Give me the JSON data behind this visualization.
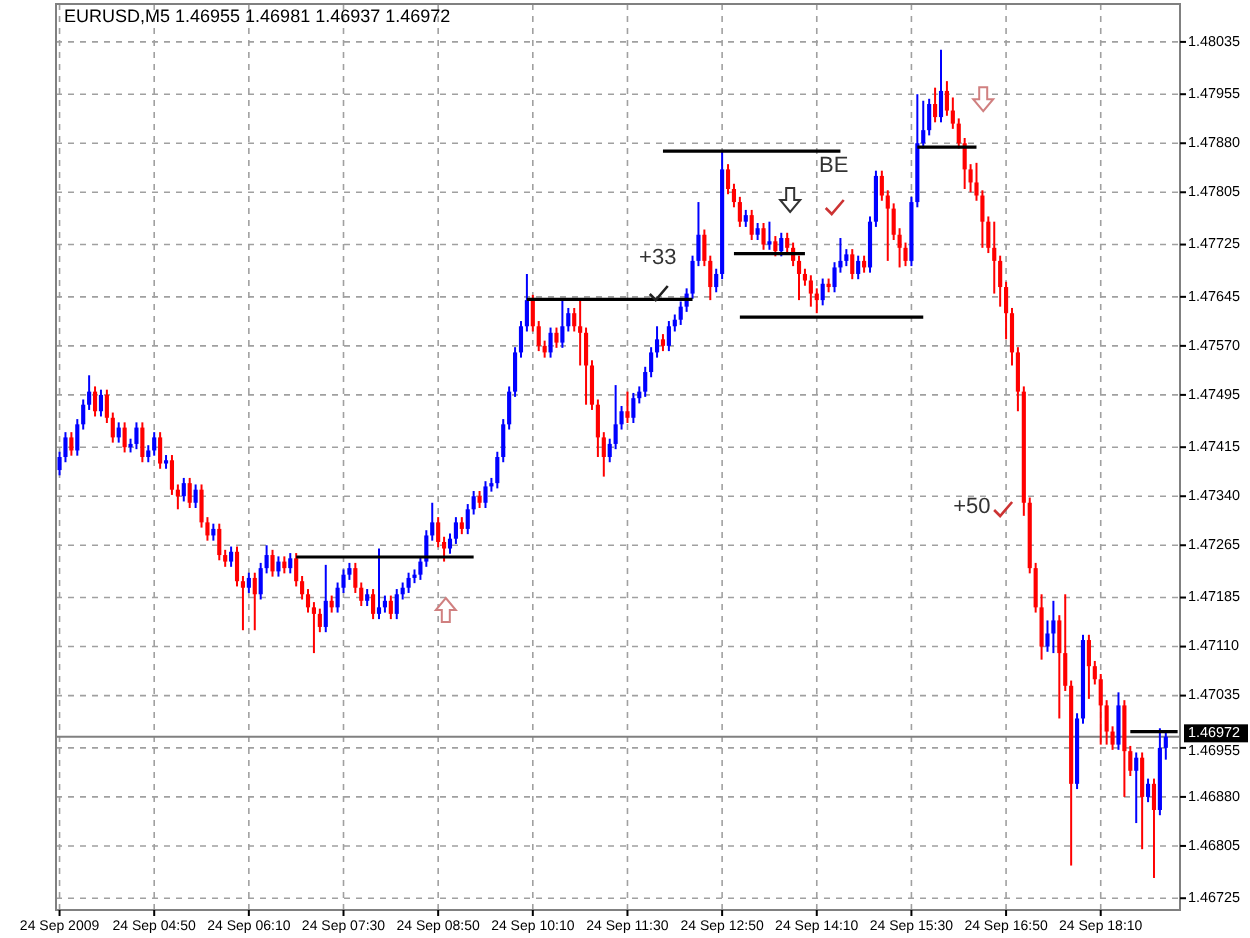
{
  "chart_data": {
    "type": "candlestick",
    "title": "EURUSD,M5  1.46955 1.46981 1.46937 1.46972",
    "x": [
      "2009-09-24T03:30",
      "2009-09-24T03:35",
      "2009-09-24T03:40",
      "2009-09-24T03:45",
      "2009-09-24T03:50",
      "2009-09-24T03:55",
      "2009-09-24T04:00",
      "2009-09-24T04:05",
      "2009-09-24T04:10",
      "2009-09-24T04:15",
      "2009-09-24T04:20",
      "2009-09-24T04:25",
      "2009-09-24T04:30",
      "2009-09-24T04:35",
      "2009-09-24T04:40",
      "2009-09-24T04:45",
      "2009-09-24T04:50",
      "2009-09-24T04:55",
      "2009-09-24T05:00",
      "2009-09-24T05:05",
      "2009-09-24T05:10",
      "2009-09-24T05:15",
      "2009-09-24T05:20",
      "2009-09-24T05:25",
      "2009-09-24T05:30",
      "2009-09-24T05:35",
      "2009-09-24T05:40",
      "2009-09-24T05:45",
      "2009-09-24T05:50",
      "2009-09-24T05:55",
      "2009-09-24T06:00",
      "2009-09-24T06:05",
      "2009-09-24T06:10",
      "2009-09-24T06:15",
      "2009-09-24T06:20",
      "2009-09-24T06:25",
      "2009-09-24T06:30",
      "2009-09-24T06:35",
      "2009-09-24T06:40",
      "2009-09-24T06:45",
      "2009-09-24T06:50",
      "2009-09-24T06:55",
      "2009-09-24T07:00",
      "2009-09-24T07:05",
      "2009-09-24T07:10",
      "2009-09-24T07:15",
      "2009-09-24T07:20",
      "2009-09-24T07:25",
      "2009-09-24T07:30",
      "2009-09-24T07:35",
      "2009-09-24T07:40",
      "2009-09-24T07:45",
      "2009-09-24T07:50",
      "2009-09-24T07:55",
      "2009-09-24T08:00",
      "2009-09-24T08:05",
      "2009-09-24T08:10",
      "2009-09-24T08:15",
      "2009-09-24T08:20",
      "2009-09-24T08:25",
      "2009-09-24T08:30",
      "2009-09-24T08:35",
      "2009-09-24T08:40",
      "2009-09-24T08:45",
      "2009-09-24T08:50",
      "2009-09-24T08:55",
      "2009-09-24T09:00",
      "2009-09-24T09:05",
      "2009-09-24T09:10",
      "2009-09-24T09:15",
      "2009-09-24T09:20",
      "2009-09-24T09:25",
      "2009-09-24T09:30",
      "2009-09-24T09:35",
      "2009-09-24T09:40",
      "2009-09-24T09:45",
      "2009-09-24T09:50",
      "2009-09-24T09:55",
      "2009-09-24T10:00",
      "2009-09-24T10:05",
      "2009-09-24T10:10",
      "2009-09-24T10:15",
      "2009-09-24T10:20",
      "2009-09-24T10:25",
      "2009-09-24T10:30",
      "2009-09-24T10:35",
      "2009-09-24T10:40",
      "2009-09-24T10:45",
      "2009-09-24T10:50",
      "2009-09-24T10:55",
      "2009-09-24T11:00",
      "2009-09-24T11:05",
      "2009-09-24T11:10",
      "2009-09-24T11:15",
      "2009-09-24T11:20",
      "2009-09-24T11:25",
      "2009-09-24T11:30",
      "2009-09-24T11:35",
      "2009-09-24T11:40",
      "2009-09-24T11:45",
      "2009-09-24T11:50",
      "2009-09-24T11:55",
      "2009-09-24T12:00",
      "2009-09-24T12:05",
      "2009-09-24T12:10",
      "2009-09-24T12:15",
      "2009-09-24T12:20",
      "2009-09-24T12:25",
      "2009-09-24T12:30",
      "2009-09-24T12:35",
      "2009-09-24T12:40",
      "2009-09-24T12:45",
      "2009-09-24T12:50",
      "2009-09-24T12:55",
      "2009-09-24T13:00",
      "2009-09-24T13:05",
      "2009-09-24T13:10",
      "2009-09-24T13:15",
      "2009-09-24T13:20",
      "2009-09-24T13:25",
      "2009-09-24T13:30",
      "2009-09-24T13:35",
      "2009-09-24T13:40",
      "2009-09-24T13:45",
      "2009-09-24T13:50",
      "2009-09-24T13:55",
      "2009-09-24T14:00",
      "2009-09-24T14:05",
      "2009-09-24T14:10",
      "2009-09-24T14:15",
      "2009-09-24T14:20",
      "2009-09-24T14:25",
      "2009-09-24T14:30",
      "2009-09-24T14:35",
      "2009-09-24T14:40",
      "2009-09-24T14:45",
      "2009-09-24T14:50",
      "2009-09-24T14:55",
      "2009-09-24T15:00",
      "2009-09-24T15:05",
      "2009-09-24T15:10",
      "2009-09-24T15:15",
      "2009-09-24T15:20",
      "2009-09-24T15:25",
      "2009-09-24T15:30",
      "2009-09-24T15:35",
      "2009-09-24T15:40",
      "2009-09-24T15:45",
      "2009-09-24T15:50",
      "2009-09-24T15:55",
      "2009-09-24T16:00",
      "2009-09-24T16:05",
      "2009-09-24T16:10",
      "2009-09-24T16:15",
      "2009-09-24T16:20",
      "2009-09-24T16:25",
      "2009-09-24T16:30",
      "2009-09-24T16:35",
      "2009-09-24T16:40",
      "2009-09-24T16:45",
      "2009-09-24T16:50",
      "2009-09-24T16:55",
      "2009-09-24T17:00",
      "2009-09-24T17:05",
      "2009-09-24T17:10",
      "2009-09-24T17:15",
      "2009-09-24T17:20",
      "2009-09-24T17:25",
      "2009-09-24T17:30",
      "2009-09-24T17:35",
      "2009-09-24T17:40",
      "2009-09-24T17:45",
      "2009-09-24T17:50",
      "2009-09-24T17:55",
      "2009-09-24T18:00",
      "2009-09-24T18:05",
      "2009-09-24T18:10",
      "2009-09-24T18:15",
      "2009-09-24T18:20",
      "2009-09-24T18:25",
      "2009-09-24T18:30",
      "2009-09-24T18:35",
      "2009-09-24T18:40",
      "2009-09-24T18:45",
      "2009-09-24T18:50",
      "2009-09-24T18:55",
      "2009-09-24T19:00",
      "2009-09-24T19:05"
    ],
    "ohlc": [
      [
        1.4738,
        1.47408,
        1.47372,
        1.474
      ],
      [
        1.474,
        1.47438,
        1.47392,
        1.4743
      ],
      [
        1.4743,
        1.47438,
        1.47402,
        1.4741
      ],
      [
        1.4741,
        1.47458,
        1.47402,
        1.4745
      ],
      [
        1.4745,
        1.47488,
        1.47442,
        1.4748
      ],
      [
        1.4748,
        1.47525,
        1.47472,
        1.475
      ],
      [
        1.475,
        1.47508,
        1.47462,
        1.4747
      ],
      [
        1.4747,
        1.47503,
        1.47462,
        1.47495
      ],
      [
        1.47495,
        1.47503,
        1.47452,
        1.4746
      ],
      [
        1.4746,
        1.47468,
        1.47422,
        1.4743
      ],
      [
        1.4743,
        1.47453,
        1.47422,
        1.47445
      ],
      [
        1.47445,
        1.47453,
        1.47407,
        1.47415
      ],
      [
        1.47415,
        1.47428,
        1.47407,
        1.4742
      ],
      [
        1.4742,
        1.47453,
        1.47412,
        1.47445
      ],
      [
        1.47445,
        1.47453,
        1.47392,
        1.474
      ],
      [
        1.474,
        1.47418,
        1.47392,
        1.4741
      ],
      [
        1.4741,
        1.47438,
        1.47402,
        1.4743
      ],
      [
        1.4743,
        1.47438,
        1.47382,
        1.4739
      ],
      [
        1.4739,
        1.47403,
        1.47382,
        1.47395
      ],
      [
        1.47395,
        1.47403,
        1.47342,
        1.4735
      ],
      [
        1.4735,
        1.47358,
        1.4732,
        1.4734
      ],
      [
        1.4734,
        1.47368,
        1.47332,
        1.4736
      ],
      [
        1.4736,
        1.47368,
        1.47322,
        1.4733
      ],
      [
        1.4733,
        1.47358,
        1.47322,
        1.4735
      ],
      [
        1.4735,
        1.47358,
        1.47292,
        1.473
      ],
      [
        1.473,
        1.47308,
        1.47272,
        1.4728
      ],
      [
        1.4728,
        1.47298,
        1.47272,
        1.4729
      ],
      [
        1.4729,
        1.47298,
        1.47242,
        1.4725
      ],
      [
        1.4725,
        1.47258,
        1.47232,
        1.4724
      ],
      [
        1.4724,
        1.47263,
        1.47232,
        1.47255
      ],
      [
        1.47255,
        1.47263,
        1.47202,
        1.4721
      ],
      [
        1.4721,
        1.47218,
        1.47135,
        1.472
      ],
      [
        1.472,
        1.47223,
        1.47192,
        1.47215
      ],
      [
        1.47215,
        1.47223,
        1.47135,
        1.4719
      ],
      [
        1.4719,
        1.47238,
        1.47182,
        1.4723
      ],
      [
        1.4723,
        1.47265,
        1.47222,
        1.4725
      ],
      [
        1.4725,
        1.47258,
        1.47217,
        1.47225
      ],
      [
        1.47225,
        1.47248,
        1.47217,
        1.4724
      ],
      [
        1.4724,
        1.47248,
        1.47222,
        1.4723
      ],
      [
        1.4723,
        1.47253,
        1.47222,
        1.47245
      ],
      [
        1.47245,
        1.47253,
        1.47202,
        1.4721
      ],
      [
        1.4721,
        1.47218,
        1.47182,
        1.4719
      ],
      [
        1.4719,
        1.47198,
        1.47162,
        1.4717
      ],
      [
        1.4717,
        1.47178,
        1.471,
        1.4716
      ],
      [
        1.4716,
        1.47168,
        1.47132,
        1.4714
      ],
      [
        1.4714,
        1.47235,
        1.47132,
        1.4718
      ],
      [
        1.4718,
        1.47188,
        1.47162,
        1.4717
      ],
      [
        1.4717,
        1.47208,
        1.47162,
        1.472
      ],
      [
        1.472,
        1.47228,
        1.47192,
        1.4722
      ],
      [
        1.4722,
        1.47238,
        1.47212,
        1.4723
      ],
      [
        1.4723,
        1.47238,
        1.47192,
        1.472
      ],
      [
        1.472,
        1.47208,
        1.47172,
        1.4718
      ],
      [
        1.4718,
        1.47198,
        1.47172,
        1.4719
      ],
      [
        1.4719,
        1.47198,
        1.47152,
        1.4716
      ],
      [
        1.4716,
        1.4726,
        1.47152,
        1.4717
      ],
      [
        1.4717,
        1.47188,
        1.47162,
        1.4718
      ],
      [
        1.4718,
        1.47188,
        1.47152,
        1.4716
      ],
      [
        1.4716,
        1.47198,
        1.47152,
        1.4719
      ],
      [
        1.4719,
        1.47208,
        1.47182,
        1.472
      ],
      [
        1.472,
        1.47223,
        1.47192,
        1.47215
      ],
      [
        1.47215,
        1.47228,
        1.47207,
        1.4722
      ],
      [
        1.4722,
        1.47248,
        1.47212,
        1.4724
      ],
      [
        1.4724,
        1.47288,
        1.47232,
        1.4728
      ],
      [
        1.4728,
        1.4733,
        1.47272,
        1.473
      ],
      [
        1.473,
        1.47308,
        1.47262,
        1.4727
      ],
      [
        1.4727,
        1.47278,
        1.4724,
        1.4726
      ],
      [
        1.4726,
        1.47283,
        1.47252,
        1.47275
      ],
      [
        1.47275,
        1.47308,
        1.47267,
        1.473
      ],
      [
        1.473,
        1.47308,
        1.47282,
        1.4729
      ],
      [
        1.4729,
        1.47328,
        1.47282,
        1.4732
      ],
      [
        1.4732,
        1.47348,
        1.47312,
        1.4734
      ],
      [
        1.4734,
        1.47348,
        1.47322,
        1.4733
      ],
      [
        1.4733,
        1.47363,
        1.47322,
        1.47355
      ],
      [
        1.47355,
        1.47368,
        1.47347,
        1.4736
      ],
      [
        1.4736,
        1.47408,
        1.47352,
        1.474
      ],
      [
        1.474,
        1.47458,
        1.47392,
        1.4745
      ],
      [
        1.4745,
        1.47508,
        1.47442,
        1.475
      ],
      [
        1.475,
        1.47568,
        1.47492,
        1.4756
      ],
      [
        1.4756,
        1.47608,
        1.47552,
        1.476
      ],
      [
        1.476,
        1.4768,
        1.47592,
        1.4764
      ],
      [
        1.4764,
        1.47648,
        1.47592,
        1.476
      ],
      [
        1.476,
        1.47608,
        1.47562,
        1.4757
      ],
      [
        1.4757,
        1.47578,
        1.47552,
        1.4756
      ],
      [
        1.4756,
        1.47598,
        1.47552,
        1.4759
      ],
      [
        1.4759,
        1.47598,
        1.47567,
        1.47575
      ],
      [
        1.47575,
        1.4764,
        1.47567,
        1.476
      ],
      [
        1.476,
        1.47628,
        1.47592,
        1.4762
      ],
      [
        1.4762,
        1.47628,
        1.47592,
        1.476
      ],
      [
        1.476,
        1.4764,
        1.4754,
        1.4759
      ],
      [
        1.4759,
        1.47598,
        1.4748,
        1.4754
      ],
      [
        1.4754,
        1.47548,
        1.47472,
        1.4748
      ],
      [
        1.4748,
        1.47488,
        1.474,
        1.4743
      ],
      [
        1.4743,
        1.47438,
        1.4737,
        1.474
      ],
      [
        1.474,
        1.47428,
        1.47392,
        1.4742
      ],
      [
        1.4742,
        1.4751,
        1.47412,
        1.4745
      ],
      [
        1.4745,
        1.47478,
        1.47442,
        1.4747
      ],
      [
        1.4747,
        1.475,
        1.47452,
        1.4746
      ],
      [
        1.4746,
        1.47498,
        1.47452,
        1.4749
      ],
      [
        1.4749,
        1.47508,
        1.47482,
        1.475
      ],
      [
        1.475,
        1.47538,
        1.47492,
        1.4753
      ],
      [
        1.4753,
        1.47568,
        1.47522,
        1.4756
      ],
      [
        1.4756,
        1.476,
        1.47552,
        1.4758
      ],
      [
        1.4758,
        1.47588,
        1.47562,
        1.4757
      ],
      [
        1.4757,
        1.47608,
        1.47562,
        1.476
      ],
      [
        1.476,
        1.47618,
        1.47592,
        1.4761
      ],
      [
        1.4761,
        1.47638,
        1.47602,
        1.4763
      ],
      [
        1.4763,
        1.47658,
        1.47622,
        1.4765
      ],
      [
        1.4765,
        1.47708,
        1.47642,
        1.477
      ],
      [
        1.477,
        1.4779,
        1.47692,
        1.4774
      ],
      [
        1.4774,
        1.47748,
        1.47692,
        1.477
      ],
      [
        1.477,
        1.47708,
        1.4764,
        1.4766
      ],
      [
        1.4766,
        1.47688,
        1.47652,
        1.4768
      ],
      [
        1.4768,
        1.47868,
        1.47672,
        1.4784
      ],
      [
        1.4784,
        1.47848,
        1.47802,
        1.4781
      ],
      [
        1.4781,
        1.47818,
        1.47782,
        1.4779
      ],
      [
        1.4779,
        1.47798,
        1.47752,
        1.4776
      ],
      [
        1.4776,
        1.47778,
        1.47752,
        1.4777
      ],
      [
        1.4777,
        1.47778,
        1.47732,
        1.4774
      ],
      [
        1.4774,
        1.47758,
        1.47732,
        1.4775
      ],
      [
        1.4775,
        1.47758,
        1.47717,
        1.47725
      ],
      [
        1.47725,
        1.4776,
        1.47717,
        1.4773
      ],
      [
        1.4773,
        1.47738,
        1.47707,
        1.47715
      ],
      [
        1.47715,
        1.47743,
        1.47707,
        1.47735
      ],
      [
        1.47735,
        1.47743,
        1.47712,
        1.4772
      ],
      [
        1.4772,
        1.47728,
        1.47692,
        1.477
      ],
      [
        1.477,
        1.47708,
        1.4764,
        1.4768
      ],
      [
        1.4768,
        1.47688,
        1.47662,
        1.4767
      ],
      [
        1.4767,
        1.47678,
        1.4763,
        1.4765
      ],
      [
        1.4765,
        1.47658,
        1.4762,
        1.4764
      ],
      [
        1.4764,
        1.47673,
        1.47632,
        1.47665
      ],
      [
        1.47665,
        1.47673,
        1.47652,
        1.4766
      ],
      [
        1.4766,
        1.47698,
        1.47652,
        1.4769
      ],
      [
        1.4769,
        1.47735,
        1.47682,
        1.477
      ],
      [
        1.477,
        1.47718,
        1.47692,
        1.4771
      ],
      [
        1.4771,
        1.47718,
        1.47672,
        1.4768
      ],
      [
        1.4768,
        1.47708,
        1.47672,
        1.477
      ],
      [
        1.477,
        1.47708,
        1.47682,
        1.4769
      ],
      [
        1.4769,
        1.47768,
        1.47682,
        1.4776
      ],
      [
        1.4776,
        1.47838,
        1.47752,
        1.4783
      ],
      [
        1.4783,
        1.47838,
        1.47792,
        1.478
      ],
      [
        1.478,
        1.47808,
        1.477,
        1.4778
      ],
      [
        1.4778,
        1.47788,
        1.47732,
        1.4774
      ],
      [
        1.4774,
        1.4775,
        1.4769,
        1.4772
      ],
      [
        1.4772,
        1.47728,
        1.47692,
        1.477
      ],
      [
        1.477,
        1.47798,
        1.47692,
        1.4779
      ],
      [
        1.4779,
        1.47955,
        1.47782,
        1.4788
      ],
      [
        1.4788,
        1.47945,
        1.47872,
        1.479
      ],
      [
        1.479,
        1.47948,
        1.47892,
        1.4794
      ],
      [
        1.4794,
        1.47965,
        1.47912,
        1.4792
      ],
      [
        1.4792,
        1.48023,
        1.47912,
        1.4796
      ],
      [
        1.4796,
        1.47975,
        1.47922,
        1.4793
      ],
      [
        1.4793,
        1.4795,
        1.47902,
        1.4791
      ],
      [
        1.4791,
        1.47918,
        1.47872,
        1.4788
      ],
      [
        1.4788,
        1.47888,
        1.4781,
        1.4784
      ],
      [
        1.4784,
        1.47848,
        1.47805,
        1.4782
      ],
      [
        1.4782,
        1.4785,
        1.47792,
        1.478
      ],
      [
        1.478,
        1.47808,
        1.4772,
        1.4776
      ],
      [
        1.4776,
        1.47768,
        1.47712,
        1.4772
      ],
      [
        1.4772,
        1.4776,
        1.4765,
        1.477
      ],
      [
        1.477,
        1.47708,
        1.4763,
        1.4766
      ],
      [
        1.4766,
        1.47668,
        1.4758,
        1.4762
      ],
      [
        1.4762,
        1.47628,
        1.4754,
        1.4756
      ],
      [
        1.4756,
        1.47568,
        1.4747,
        1.475
      ],
      [
        1.475,
        1.47508,
        1.4731,
        1.4733
      ],
      [
        1.4733,
        1.47338,
        1.47222,
        1.4723
      ],
      [
        1.4723,
        1.47238,
        1.47162,
        1.4717
      ],
      [
        1.4717,
        1.4719,
        1.4709,
        1.4711
      ],
      [
        1.4711,
        1.4715,
        1.47102,
        1.4713
      ],
      [
        1.4713,
        1.4718,
        1.471,
        1.4715
      ],
      [
        1.4715,
        1.47158,
        1.47,
        1.471
      ],
      [
        1.471,
        1.4719,
        1.47042,
        1.4705
      ],
      [
        1.4705,
        1.47058,
        1.46775,
        1.469
      ],
      [
        1.469,
        1.47008,
        1.46892,
        1.47
      ],
      [
        1.47,
        1.47128,
        1.46992,
        1.4712
      ],
      [
        1.4712,
        1.47128,
        1.4703,
        1.4708
      ],
      [
        1.4708,
        1.47088,
        1.47052,
        1.4706
      ],
      [
        1.4706,
        1.47068,
        1.4696,
        1.4702
      ],
      [
        1.4702,
        1.47028,
        1.4696,
        1.4698
      ],
      [
        1.4698,
        1.46988,
        1.46952,
        1.4696
      ],
      [
        1.4696,
        1.4704,
        1.46952,
        1.4702
      ],
      [
        1.4702,
        1.47028,
        1.4688,
        1.4695
      ],
      [
        1.4695,
        1.46958,
        1.46912,
        1.4692
      ],
      [
        1.4692,
        1.46948,
        1.4684,
        1.4694
      ],
      [
        1.4694,
        1.46948,
        1.468,
        1.4688
      ],
      [
        1.4688,
        1.46908,
        1.46872,
        1.469
      ],
      [
        1.469,
        1.46908,
        1.46756,
        1.4686
      ],
      [
        1.4686,
        1.46985,
        1.46852,
        1.46955
      ],
      [
        1.46955,
        1.46981,
        1.46937,
        1.46972
      ]
    ],
    "colors": [
      "#0000ff",
      "#0000ff",
      "#ff0000",
      "#0000ff",
      "#0000ff",
      "#0000ff",
      "#ff0000",
      "#0000ff",
      "#ff0000",
      "#ff0000",
      "#0000ff",
      "#ff0000",
      "#0000ff",
      "#0000ff",
      "#ff0000",
      "#0000ff",
      "#0000ff",
      "#ff0000",
      "#0000ff",
      "#ff0000",
      "#ff0000",
      "#0000ff",
      "#ff0000",
      "#0000ff",
      "#ff0000",
      "#ff0000",
      "#0000ff",
      "#ff0000",
      "#ff0000",
      "#0000ff",
      "#ff0000",
      "#ff0000",
      "#0000ff",
      "#ff0000",
      "#0000ff",
      "#0000ff",
      "#ff0000",
      "#0000ff",
      "#ff0000",
      "#0000ff",
      "#ff0000",
      "#ff0000",
      "#ff0000",
      "#ff0000",
      "#ff0000",
      "#0000ff",
      "#ff0000",
      "#0000ff",
      "#0000ff",
      "#0000ff",
      "#ff0000",
      "#ff0000",
      "#0000ff",
      "#ff0000",
      "#0000ff",
      "#0000ff",
      "#ff0000",
      "#0000ff",
      "#0000ff",
      "#0000ff",
      "#0000ff",
      "#0000ff",
      "#0000ff",
      "#0000ff",
      "#ff0000",
      "#ff0000",
      "#0000ff",
      "#0000ff",
      "#ff0000",
      "#0000ff",
      "#0000ff",
      "#ff0000",
      "#0000ff",
      "#0000ff",
      "#0000ff",
      "#0000ff",
      "#0000ff",
      "#0000ff",
      "#0000ff",
      "#0000ff",
      "#ff0000",
      "#ff0000",
      "#ff0000",
      "#0000ff",
      "#ff0000",
      "#0000ff",
      "#0000ff",
      "#ff0000",
      "#ff0000",
      "#ff0000",
      "#ff0000",
      "#ff0000",
      "#ff0000",
      "#0000ff",
      "#0000ff",
      "#0000ff",
      "#ff0000",
      "#0000ff",
      "#0000ff",
      "#0000ff",
      "#0000ff",
      "#0000ff",
      "#ff0000",
      "#0000ff",
      "#0000ff",
      "#0000ff",
      "#0000ff",
      "#0000ff",
      "#0000ff",
      "#ff0000",
      "#ff0000",
      "#0000ff",
      "#0000ff",
      "#ff0000",
      "#ff0000",
      "#ff0000",
      "#0000ff",
      "#ff0000",
      "#0000ff",
      "#ff0000",
      "#0000ff",
      "#ff0000",
      "#0000ff",
      "#ff0000",
      "#ff0000",
      "#ff0000",
      "#ff0000",
      "#ff0000",
      "#ff0000",
      "#0000ff",
      "#ff0000",
      "#0000ff",
      "#0000ff",
      "#0000ff",
      "#ff0000",
      "#0000ff",
      "#ff0000",
      "#0000ff",
      "#0000ff",
      "#ff0000",
      "#ff0000",
      "#ff0000",
      "#ff0000",
      "#ff0000",
      "#0000ff",
      "#0000ff",
      "#0000ff",
      "#0000ff",
      "#ff0000",
      "#0000ff",
      "#ff0000",
      "#ff0000",
      "#ff0000",
      "#ff0000",
      "#ff0000",
      "#ff0000",
      "#ff0000",
      "#ff0000",
      "#ff0000",
      "#ff0000",
      "#ff0000",
      "#ff0000",
      "#ff0000",
      "#ff0000",
      "#ff0000",
      "#ff0000",
      "#ff0000",
      "#0000ff",
      "#0000ff",
      "#ff0000",
      "#ff0000",
      "#ff0000",
      "#0000ff",
      "#0000ff",
      "#ff0000",
      "#ff0000",
      "#ff0000",
      "#ff0000",
      "#ff0000",
      "#0000ff",
      "#ff0000",
      "#ff0000",
      "#0000ff",
      "#ff0000",
      "#0000ff",
      "#ff0000",
      "#0000ff",
      "#0000ff"
    ],
    "series": [
      {
        "type": "line",
        "color": "#000000",
        "x": [
          "2009-09-24T06:50",
          "2009-09-24T09:20"
        ],
        "values": [
          1.47247,
          1.47247
        ]
      },
      {
        "type": "line",
        "color": "#000000",
        "x": [
          "2009-09-24T10:05",
          "2009-09-24T12:25"
        ],
        "values": [
          1.47641,
          1.47641
        ]
      },
      {
        "type": "line",
        "color": "#000000",
        "x": [
          "2009-09-24T12:00",
          "2009-09-24T14:30"
        ],
        "values": [
          1.47868,
          1.47868
        ]
      },
      {
        "type": "line",
        "color": "#000000",
        "x": [
          "2009-09-24T13:00",
          "2009-09-24T14:00"
        ],
        "values": [
          1.47711,
          1.47711
        ]
      },
      {
        "type": "line",
        "color": "#000000",
        "x": [
          "2009-09-24T13:05",
          "2009-09-24T15:40"
        ],
        "values": [
          1.47614,
          1.47614
        ]
      },
      {
        "type": "line",
        "color": "#000000",
        "x": [
          "2009-09-24T15:35",
          "2009-09-24T16:25"
        ],
        "values": [
          1.47874,
          1.47874
        ]
      },
      {
        "type": "line",
        "color": "#000000",
        "x": [
          "2009-09-24T18:35",
          "2009-09-24T19:15"
        ],
        "values": [
          1.4698,
          1.4698
        ]
      }
    ],
    "ref_lines": [
      {
        "axis": "y",
        "value": 1.46972,
        "label": "1.46972",
        "color": "#808080"
      }
    ],
    "annotations": [
      "+33",
      "BE",
      "+50"
    ],
    "xlim": [
      "2009-09-24T03:27",
      "2009-09-24T19:17"
    ],
    "xticks": [
      {
        "value": "2009-09-24T03:30",
        "label": "24 Sep 2009"
      },
      {
        "value": "2009-09-24T04:50",
        "label": "24 Sep 04:50"
      },
      {
        "value": "2009-09-24T06:10",
        "label": "24 Sep 06:10"
      },
      {
        "value": "2009-09-24T07:30",
        "label": "24 Sep 07:30"
      },
      {
        "value": "2009-09-24T08:50",
        "label": "24 Sep 08:50"
      },
      {
        "value": "2009-09-24T10:10",
        "label": "24 Sep 10:10"
      },
      {
        "value": "2009-09-24T11:30",
        "label": "24 Sep 11:30"
      },
      {
        "value": "2009-09-24T12:50",
        "label": "24 Sep 12:50"
      },
      {
        "value": "2009-09-24T14:10",
        "label": "24 Sep 14:10"
      },
      {
        "value": "2009-09-24T15:30",
        "label": "24 Sep 15:30"
      },
      {
        "value": "2009-09-24T16:50",
        "label": "24 Sep 16:50"
      },
      {
        "value": "2009-09-24T18:10",
        "label": "24 Sep 18:10"
      }
    ],
    "ylim": [
      1.46707,
      1.48093
    ],
    "yticks": [
      1.48035,
      1.47955,
      {
        "value": 1.4788,
        "label": "1.47880"
      },
      1.47805,
      1.47725,
      1.47645,
      {
        "value": 1.4757,
        "label": "1.47570"
      },
      1.47495,
      1.47415,
      {
        "value": 1.4734,
        "label": "1.47340"
      },
      1.47265,
      1.47185,
      {
        "value": 1.4711,
        "label": "1.47110"
      },
      1.47035,
      1.46955,
      {
        "value": 1.4688,
        "label": "1.46880"
      },
      1.46805,
      1.46725
    ],
    "grid": true
  }
}
